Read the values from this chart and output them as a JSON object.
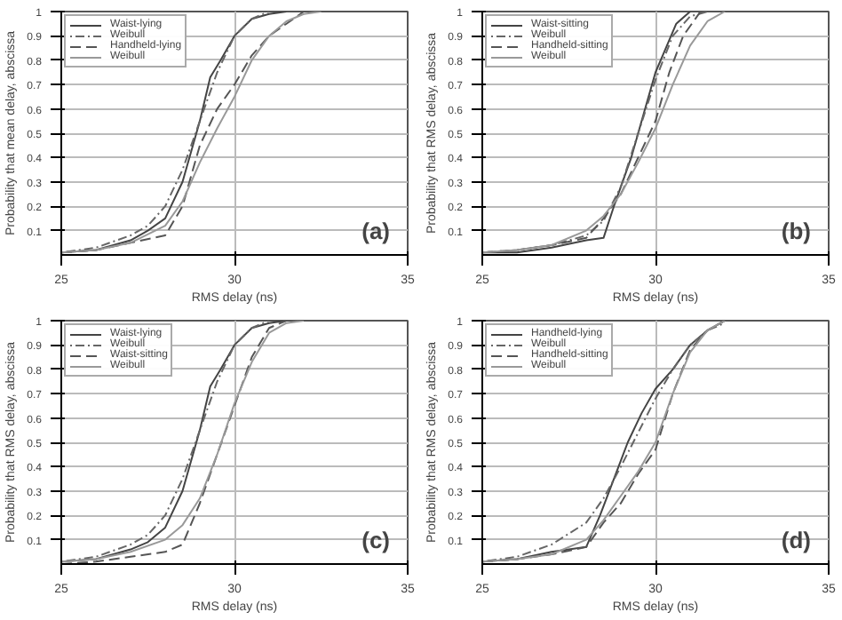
{
  "chart_data": [
    {
      "type": "line",
      "xlabel": "RMS delay (ns)",
      "ylabel": "Probability that mean delay, abscissa",
      "xlim": [
        25,
        35
      ],
      "xticks": [
        25,
        30,
        35
      ],
      "ylim": [
        0,
        1
      ],
      "yticks": [
        0.1,
        0.2,
        0.3,
        0.4,
        0.5,
        0.6,
        0.7,
        0.8,
        0.9,
        1
      ],
      "grid": true,
      "legend": "top left",
      "annotations": [
        "(a)"
      ],
      "series": [
        {
          "name": "Waist-lying",
          "color": "#444444",
          "line_style": "solid",
          "x": [
            25,
            26,
            27,
            27.5,
            28,
            28.5,
            29,
            29.3,
            29.6,
            30,
            30.5,
            31,
            31.5
          ],
          "values": [
            0.01,
            0.02,
            0.06,
            0.1,
            0.15,
            0.3,
            0.55,
            0.73,
            0.8,
            0.9,
            0.97,
            0.99,
            1
          ]
        },
        {
          "name": "Weibull",
          "color": "#666666",
          "line_style": "dotted",
          "x": [
            25,
            26,
            27,
            27.5,
            28,
            28.5,
            29,
            29.5,
            30,
            30.5,
            31
          ],
          "values": [
            0.01,
            0.03,
            0.08,
            0.12,
            0.2,
            0.35,
            0.55,
            0.75,
            0.9,
            0.97,
            1
          ]
        },
        {
          "name": "Handheld-lying",
          "color": "#555555",
          "line_style": "dashed",
          "x": [
            25,
            26,
            27,
            28,
            28.5,
            29,
            29.5,
            30,
            30.5,
            31,
            31.5,
            32
          ],
          "values": [
            0.01,
            0.02,
            0.05,
            0.08,
            0.2,
            0.45,
            0.6,
            0.7,
            0.82,
            0.9,
            0.95,
            1
          ]
        },
        {
          "name": "Weibull",
          "color": "#999999",
          "line_style": "solid",
          "x": [
            25,
            26,
            27,
            28,
            28.5,
            29,
            29.5,
            30,
            30.5,
            31,
            31.5,
            32,
            32.5
          ],
          "values": [
            0.01,
            0.02,
            0.05,
            0.12,
            0.22,
            0.38,
            0.52,
            0.65,
            0.8,
            0.9,
            0.96,
            0.99,
            1
          ]
        }
      ]
    },
    {
      "type": "line",
      "xlabel": "RMS delay (ns)",
      "ylabel": "Probability that RMS delay, abscissa",
      "xlim": [
        25,
        35
      ],
      "xticks": [
        25,
        30,
        35
      ],
      "ylim": [
        0,
        1
      ],
      "yticks": [
        0.1,
        0.2,
        0.3,
        0.4,
        0.5,
        0.6,
        0.7,
        0.8,
        0.9,
        1
      ],
      "grid": true,
      "legend": "top left",
      "annotations": [
        "(b)"
      ],
      "series": [
        {
          "name": "Waist-sitting",
          "color": "#444444",
          "line_style": "solid",
          "x": [
            25,
            26,
            27,
            28,
            28.5,
            28.8,
            29.3,
            29.7,
            30,
            30.3,
            30.6,
            31
          ],
          "values": [
            0.01,
            0.01,
            0.03,
            0.06,
            0.07,
            0.2,
            0.4,
            0.6,
            0.75,
            0.85,
            0.95,
            1
          ]
        },
        {
          "name": "Weibull",
          "color": "#666666",
          "line_style": "dotted",
          "x": [
            25,
            26,
            27,
            28,
            28.5,
            29,
            29.5,
            30,
            30.5,
            31,
            31.5
          ],
          "values": [
            0.01,
            0.02,
            0.04,
            0.08,
            0.14,
            0.28,
            0.5,
            0.72,
            0.9,
            0.98,
            1
          ]
        },
        {
          "name": "Handheld-sitting",
          "color": "#555555",
          "line_style": "dashed",
          "x": [
            25,
            26,
            27,
            28,
            28.5,
            29,
            29.5,
            30,
            30.4,
            30.8,
            31.3
          ],
          "values": [
            0.01,
            0.02,
            0.04,
            0.07,
            0.15,
            0.25,
            0.4,
            0.55,
            0.75,
            0.9,
            1
          ]
        },
        {
          "name": "Weibull",
          "color": "#999999",
          "line_style": "solid",
          "x": [
            25,
            26,
            27,
            28,
            28.5,
            29,
            29.5,
            30,
            30.5,
            31,
            31.5,
            32
          ],
          "values": [
            0.01,
            0.02,
            0.04,
            0.1,
            0.16,
            0.25,
            0.38,
            0.52,
            0.7,
            0.86,
            0.96,
            1
          ]
        }
      ]
    },
    {
      "type": "line",
      "xlabel": "RMS delay (ns)",
      "ylabel": "Probability that RMS delay, abscissa",
      "xlim": [
        25,
        35
      ],
      "xticks": [
        25,
        30,
        35
      ],
      "ylim": [
        0,
        1
      ],
      "yticks": [
        0.1,
        0.2,
        0.3,
        0.4,
        0.5,
        0.6,
        0.7,
        0.8,
        0.9,
        1
      ],
      "grid": true,
      "legend": "top left",
      "annotations": [
        "(c)"
      ],
      "series": [
        {
          "name": "Waist-lying",
          "color": "#444444",
          "line_style": "solid",
          "x": [
            25,
            26,
            27,
            27.5,
            28,
            28.5,
            29,
            29.3,
            29.6,
            30,
            30.5,
            31,
            31.5
          ],
          "values": [
            0.01,
            0.02,
            0.06,
            0.09,
            0.15,
            0.3,
            0.55,
            0.73,
            0.8,
            0.9,
            0.97,
            0.99,
            1
          ]
        },
        {
          "name": "Weibull",
          "color": "#666666",
          "line_style": "dotted",
          "x": [
            25,
            26,
            27,
            27.5,
            28,
            28.5,
            29,
            29.5,
            30,
            30.5,
            31
          ],
          "values": [
            0.01,
            0.03,
            0.08,
            0.12,
            0.2,
            0.35,
            0.55,
            0.75,
            0.9,
            0.97,
            1
          ]
        },
        {
          "name": "Waist-sitting",
          "color": "#555555",
          "line_style": "dashed",
          "x": [
            25,
            26,
            27,
            28,
            28.5,
            29,
            29.5,
            30,
            30.5,
            31,
            31.5
          ],
          "values": [
            0.0,
            0.01,
            0.03,
            0.05,
            0.08,
            0.25,
            0.45,
            0.65,
            0.85,
            0.97,
            1
          ]
        },
        {
          "name": "Weibull",
          "color": "#999999",
          "line_style": "solid",
          "x": [
            25,
            26,
            27,
            28,
            28.5,
            29,
            29.5,
            30,
            30.5,
            31,
            31.5,
            32
          ],
          "values": [
            0.01,
            0.02,
            0.05,
            0.1,
            0.16,
            0.27,
            0.45,
            0.66,
            0.83,
            0.95,
            0.99,
            1
          ]
        }
      ]
    },
    {
      "type": "line",
      "xlabel": "RMS delay (ns)",
      "ylabel": "Probability that RMS delay, abscissa",
      "xlim": [
        25,
        35
      ],
      "xticks": [
        25,
        30,
        35
      ],
      "ylim": [
        0,
        1
      ],
      "yticks": [
        0.1,
        0.2,
        0.3,
        0.4,
        0.5,
        0.6,
        0.7,
        0.8,
        0.9,
        1
      ],
      "grid": true,
      "legend": "top left",
      "annotations": [
        "(d)"
      ],
      "series": [
        {
          "name": "Handheld-lying",
          "color": "#444444",
          "line_style": "solid",
          "x": [
            25,
            26,
            27,
            28,
            28.4,
            28.8,
            29.2,
            29.6,
            30,
            30.5,
            31,
            31.5,
            32
          ],
          "values": [
            0.01,
            0.02,
            0.05,
            0.07,
            0.2,
            0.35,
            0.5,
            0.62,
            0.72,
            0.8,
            0.9,
            0.96,
            1
          ]
        },
        {
          "name": "Weibull",
          "color": "#666666",
          "line_style": "dotted",
          "x": [
            25,
            26,
            27,
            28,
            28.5,
            29,
            29.5,
            30,
            30.5,
            31,
            31.5,
            32
          ],
          "values": [
            0.01,
            0.03,
            0.08,
            0.17,
            0.27,
            0.4,
            0.54,
            0.68,
            0.8,
            0.9,
            0.96,
            0.99
          ]
        },
        {
          "name": "Handheld-sitting",
          "color": "#555555",
          "line_style": "dashed",
          "x": [
            25,
            26,
            27,
            28,
            28.5,
            29,
            29.5,
            30,
            30.5,
            31,
            31.5,
            32
          ],
          "values": [
            0.01,
            0.02,
            0.04,
            0.07,
            0.17,
            0.25,
            0.37,
            0.47,
            0.7,
            0.88,
            0.96,
            1
          ]
        },
        {
          "name": "Weibull",
          "color": "#999999",
          "line_style": "solid",
          "x": [
            25,
            26,
            27,
            28,
            28.5,
            29,
            29.5,
            30,
            30.5,
            31,
            31.5,
            32
          ],
          "values": [
            0.01,
            0.02,
            0.04,
            0.1,
            0.18,
            0.28,
            0.38,
            0.5,
            0.7,
            0.87,
            0.96,
            1
          ]
        }
      ]
    }
  ]
}
